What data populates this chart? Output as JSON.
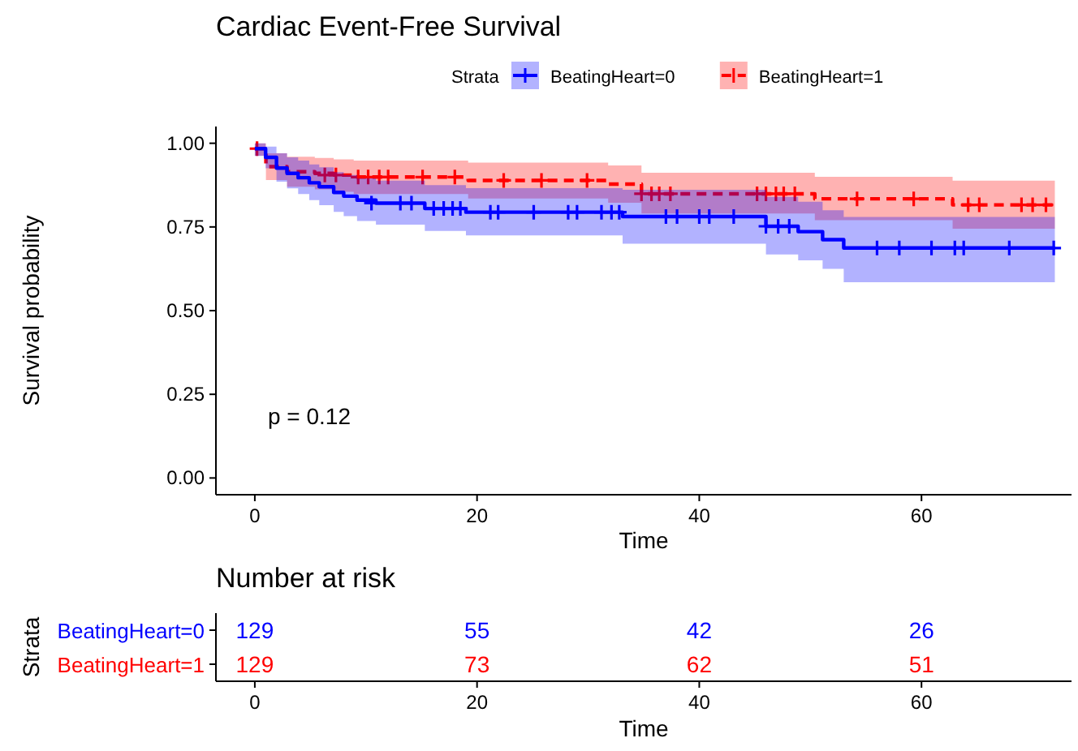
{
  "chart_data": [
    {
      "type": "step",
      "title": "Cardiac Event-Free Survival",
      "xlabel": "Time",
      "ylabel": "Survival probability",
      "legend_title": "Strata",
      "legend": "top",
      "xlim": [
        -3.5,
        73.5
      ],
      "ylim": [
        -0.05,
        1.05
      ],
      "xticks": [
        0,
        20,
        40,
        60
      ],
      "yticks": [
        {
          "value": 0,
          "label": "0.00"
        },
        {
          "value": 0.25,
          "label": "0.25"
        },
        {
          "value": 0.5,
          "label": "0.50"
        },
        {
          "value": 0.75,
          "label": "0.75"
        },
        {
          "value": 1,
          "label": "1.00"
        }
      ],
      "grid": false,
      "annotations": [
        "p = 0.12"
      ],
      "series": [
        {
          "name": "BeatingHeart=0",
          "color": "#0000ff",
          "line_style": "solid",
          "x": [
            0,
            0.97,
            1.95,
            2.9,
            3.9,
            4.9,
            5.8,
            7.1,
            8.0,
            9.2,
            10.9,
            15.3,
            19.0,
            33.1,
            46.0,
            48.9,
            51.1,
            53.0,
            72
          ],
          "values": [
            0.984,
            0.958,
            0.926,
            0.91,
            0.897,
            0.882,
            0.87,
            0.853,
            0.842,
            0.83,
            0.821,
            0.805,
            0.794,
            0.781,
            0.752,
            0.736,
            0.712,
            0.687,
            0.687
          ],
          "lower": [
            0.962,
            0.925,
            0.885,
            0.865,
            0.848,
            0.83,
            0.815,
            0.795,
            0.782,
            0.768,
            0.757,
            0.738,
            0.725,
            0.7,
            0.668,
            0.65,
            0.625,
            0.585,
            0.585
          ],
          "upper": [
            1.0,
            0.99,
            0.97,
            0.958,
            0.948,
            0.937,
            0.928,
            0.914,
            0.905,
            0.895,
            0.888,
            0.875,
            0.866,
            0.861,
            0.84,
            0.825,
            0.8,
            0.78,
            0.78
          ]
        },
        {
          "name": "BeatingHeart=1",
          "color": "#ff0000",
          "line_style": "dashed",
          "x": [
            0,
            1,
            2.9,
            5.4,
            7.1,
            8.9,
            19.2,
            31.8,
            34.8,
            50.4,
            62.8,
            72
          ],
          "values": [
            0.984,
            0.93,
            0.915,
            0.91,
            0.905,
            0.899,
            0.889,
            0.878,
            0.849,
            0.834,
            0.816,
            0.816
          ],
          "lower": [
            0.963,
            0.89,
            0.87,
            0.862,
            0.855,
            0.848,
            0.835,
            0.822,
            0.79,
            0.77,
            0.745,
            0.745
          ],
          "upper": [
            1.0,
            0.97,
            0.96,
            0.956,
            0.952,
            0.948,
            0.942,
            0.934,
            0.912,
            0.9,
            0.888,
            0.888
          ]
        },
        {
          "type": "scatter",
          "color": "#0000ff",
          "marker": "cross",
          "x": [
            10.5,
            13.1,
            14.1,
            16.1,
            17.0,
            17.8,
            18.5,
            21.2,
            21.9,
            25.1,
            28.2,
            29.0,
            31.2,
            32.1,
            32.8,
            37.0,
            38.0,
            40.0,
            40.9,
            43.1,
            46.0,
            47.1,
            48.1,
            56.0,
            58.0,
            60.9,
            63.0,
            63.8,
            67.9,
            71.9
          ],
          "values": [
            0.821,
            0.821,
            0.821,
            0.805,
            0.805,
            0.805,
            0.805,
            0.794,
            0.794,
            0.794,
            0.794,
            0.794,
            0.794,
            0.794,
            0.794,
            0.781,
            0.781,
            0.781,
            0.781,
            0.781,
            0.752,
            0.752,
            0.752,
            0.687,
            0.687,
            0.687,
            0.687,
            0.687,
            0.687,
            0.687
          ]
        },
        {
          "type": "scatter",
          "color": "#ff0000",
          "marker": "cross",
          "x": [
            0.2,
            6.3,
            7.3,
            9.3,
            10.2,
            11.2,
            12.0,
            15.1,
            18.0,
            22.4,
            25.8,
            29.9,
            34.8,
            35.7,
            36.4,
            37.4,
            45.2,
            46.0,
            46.9,
            47.6,
            48.6,
            54.2,
            59.3,
            64.2,
            65.2,
            69.0,
            70.0,
            71.2
          ],
          "values": [
            0.984,
            0.905,
            0.905,
            0.899,
            0.899,
            0.899,
            0.899,
            0.899,
            0.899,
            0.889,
            0.889,
            0.889,
            0.849,
            0.849,
            0.849,
            0.849,
            0.849,
            0.849,
            0.849,
            0.849,
            0.849,
            0.834,
            0.834,
            0.816,
            0.816,
            0.816,
            0.816,
            0.816
          ]
        }
      ]
    },
    {
      "type": "heatmap",
      "title": "Number at risk",
      "xlabel": "Time",
      "ylabel": "Strata",
      "xlim": [
        -3.5,
        73.5
      ],
      "xticks": [
        0,
        20,
        40,
        60
      ],
      "x": [
        0,
        20,
        40,
        60
      ],
      "data_labels": true,
      "y_categories": [
        "BeatingHeart=0",
        "BeatingHeart=1"
      ],
      "colors": [
        "#0000ff",
        "#ff0000"
      ],
      "cells": [
        [
          129,
          55,
          42,
          26
        ],
        [
          129,
          73,
          62,
          51
        ]
      ]
    }
  ]
}
